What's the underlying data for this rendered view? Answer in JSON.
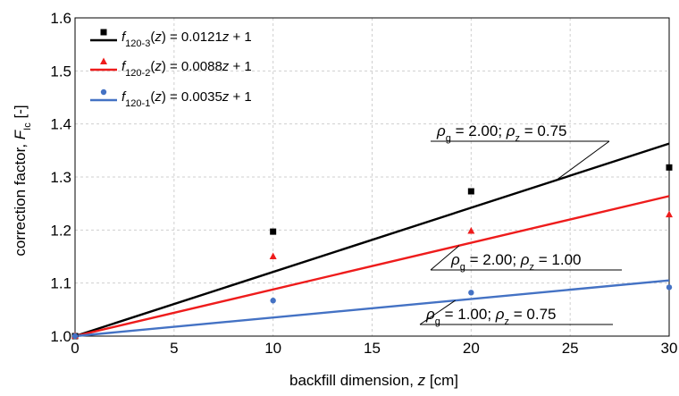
{
  "chart_data": {
    "type": "scatter",
    "xlabel": "backfill dimension, z [cm]",
    "ylabel": "correction factor, F_Ic [-]",
    "xlim": [
      0,
      30
    ],
    "ylim": [
      1.0,
      1.6
    ],
    "xticks": [
      "0",
      "5",
      "10",
      "15",
      "20",
      "25",
      "30"
    ],
    "yticks": [
      "1.0",
      "1.1",
      "1.2",
      "1.3",
      "1.4",
      "1.5",
      "1.6"
    ],
    "grid": true,
    "legend_position": "top-left",
    "series": [
      {
        "name": "f120-3(z) = 0.0121z + 1",
        "color": "#000000",
        "marker": "square",
        "slope": 0.0121,
        "intercept": 1,
        "points": [
          [
            0,
            1.0
          ],
          [
            10,
            1.197
          ],
          [
            20,
            1.273
          ],
          [
            30,
            1.318
          ]
        ]
      },
      {
        "name": "f120-2(z) = 0.0088z + 1",
        "color": "#ee1c1c",
        "marker": "triangle",
        "slope": 0.0088,
        "intercept": 1,
        "points": [
          [
            0,
            1.0
          ],
          [
            10,
            1.15
          ],
          [
            20,
            1.198
          ],
          [
            30,
            1.229
          ]
        ]
      },
      {
        "name": "f120-1(z) = 0.0035z + 1",
        "color": "#4472c4",
        "marker": "circle",
        "slope": 0.0035,
        "intercept": 1,
        "points": [
          [
            0,
            1.0
          ],
          [
            10,
            1.067
          ],
          [
            20,
            1.082
          ],
          [
            30,
            1.092
          ]
        ]
      }
    ],
    "annotations": [
      {
        "text": "ρg = 2.00;  ρz = 0.75",
        "series": 0
      },
      {
        "text": "ρg = 2.00;  ρz = 1.00",
        "series": 1
      },
      {
        "text": "ρg = 1.00;  ρz = 0.75",
        "series": 2
      }
    ]
  }
}
